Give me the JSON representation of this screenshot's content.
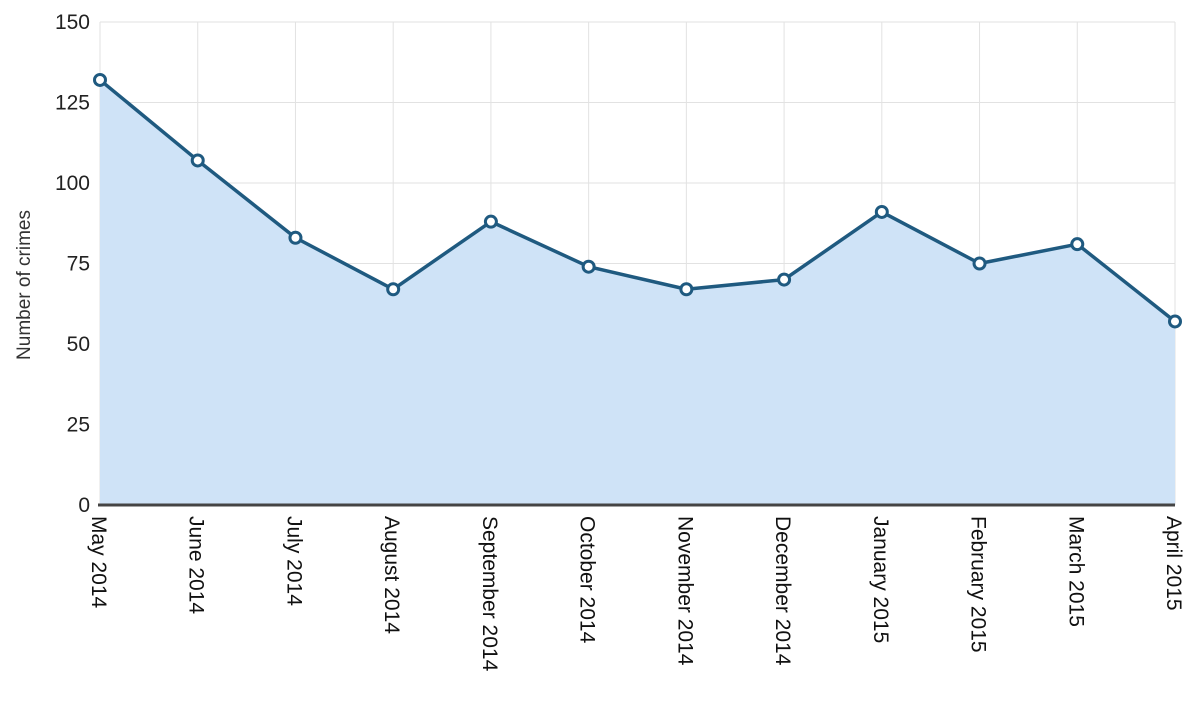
{
  "chart_data": {
    "type": "area",
    "title": "",
    "xlabel": "",
    "ylabel": "Number of crimes",
    "ylim": [
      0,
      150
    ],
    "yticks": [
      0,
      25,
      50,
      75,
      100,
      125,
      150
    ],
    "categories": [
      "May 2014",
      "June 2014",
      "July 2014",
      "August 2014",
      "September 2014",
      "October 2014",
      "November 2014",
      "December 2014",
      "January 2015",
      "February 2015",
      "March 2015",
      "April 2015"
    ],
    "values": [
      132,
      107,
      83,
      67,
      88,
      74,
      67,
      70,
      91,
      75,
      81,
      57
    ],
    "grid": true,
    "colors": {
      "line": "#1f5a80",
      "fill": "#cfe3f7",
      "marker_fill": "#ffffff",
      "baseline": "#444444",
      "grid": "#e2e2e2"
    }
  }
}
